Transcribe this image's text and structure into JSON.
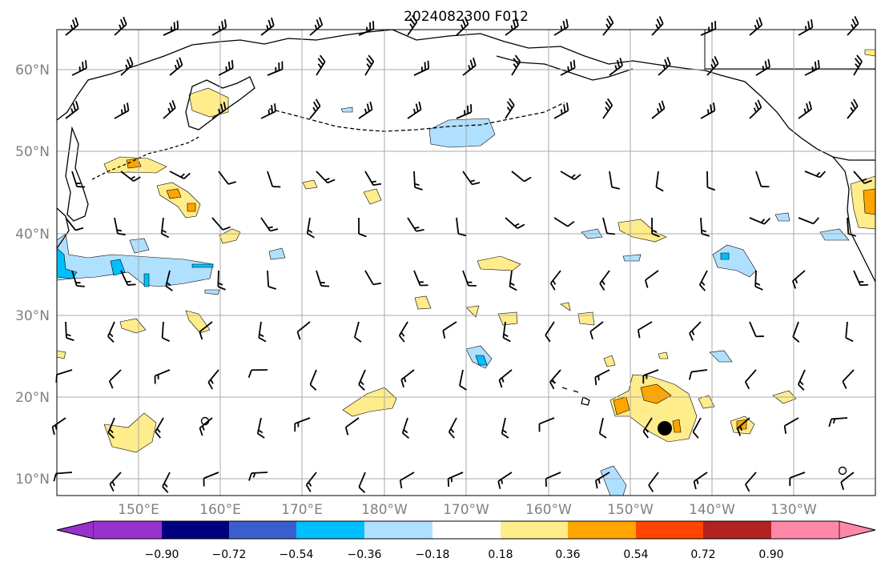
{
  "title": "2024082300 F012",
  "map": {
    "lat_labels": [
      "60°N",
      "50°N",
      "40°N",
      "30°N",
      "20°N",
      "10°N"
    ],
    "lon_labels": [
      "150°E",
      "160°E",
      "170°E",
      "180°W",
      "170°W",
      "160°W",
      "150°W",
      "140°W",
      "130°W"
    ],
    "lat_range": [
      8,
      65
    ],
    "lon_range": [
      140,
      242
    ]
  },
  "colorbar": {
    "ticks": [
      "−0.90",
      "−0.72",
      "−0.54",
      "−0.36",
      "−0.18",
      "0.18",
      "0.36",
      "0.54",
      "0.72",
      "0.90"
    ],
    "colors": [
      "#9932cc",
      "#000080",
      "#3a5fcd",
      "#00bfff",
      "#b0e0ff",
      "#ffffff",
      "#ffec8b",
      "#ffa500",
      "#ff4500",
      "#b22222",
      "#ff88aa"
    ]
  },
  "colors": {
    "grid": "#a9a9a9",
    "coast": "#000000",
    "label_gray": "#808080"
  }
}
